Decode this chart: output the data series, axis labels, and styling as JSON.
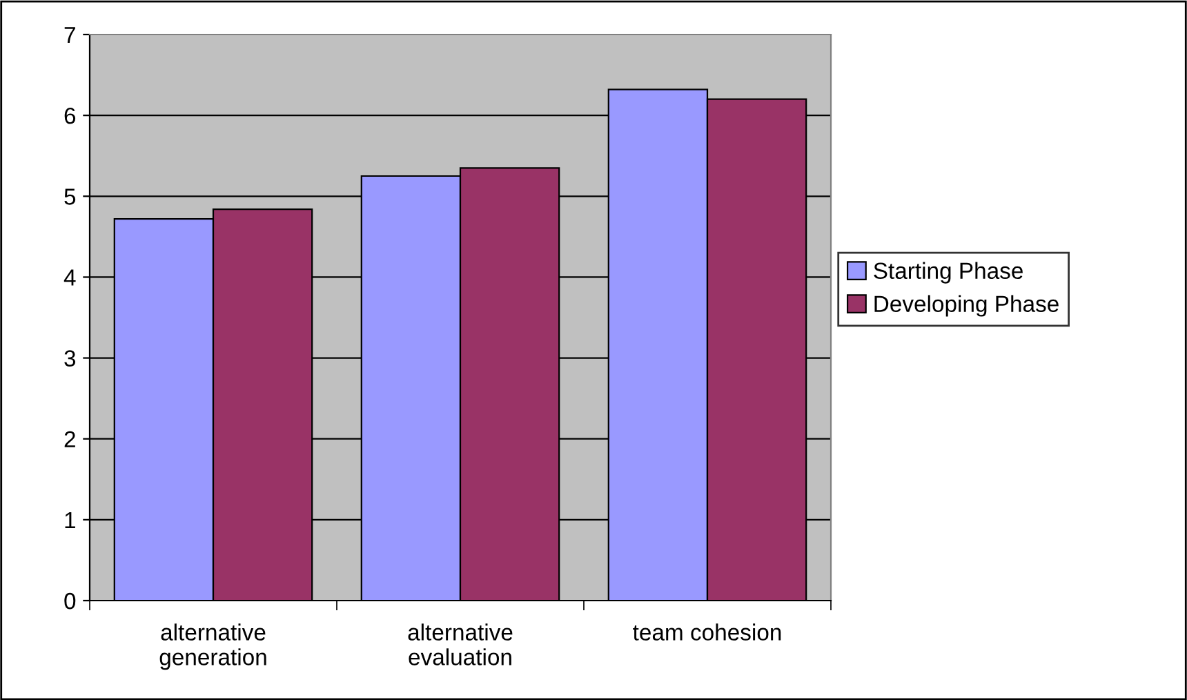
{
  "chart_data": {
    "type": "bar",
    "categories": [
      "alternative\ngeneration",
      "alternative\nevaluation",
      "team cohesion"
    ],
    "series": [
      {
        "name": "Starting Phase",
        "color": "#9999ff",
        "values": [
          4.72,
          5.25,
          6.32
        ]
      },
      {
        "name": "Developing Phase",
        "color": "#993366",
        "values": [
          4.84,
          5.35,
          6.2
        ]
      }
    ],
    "ylim": [
      0,
      7
    ],
    "yticks": [
      0,
      1,
      2,
      3,
      4,
      5,
      6,
      7
    ],
    "grid": "y",
    "legend": "right"
  }
}
